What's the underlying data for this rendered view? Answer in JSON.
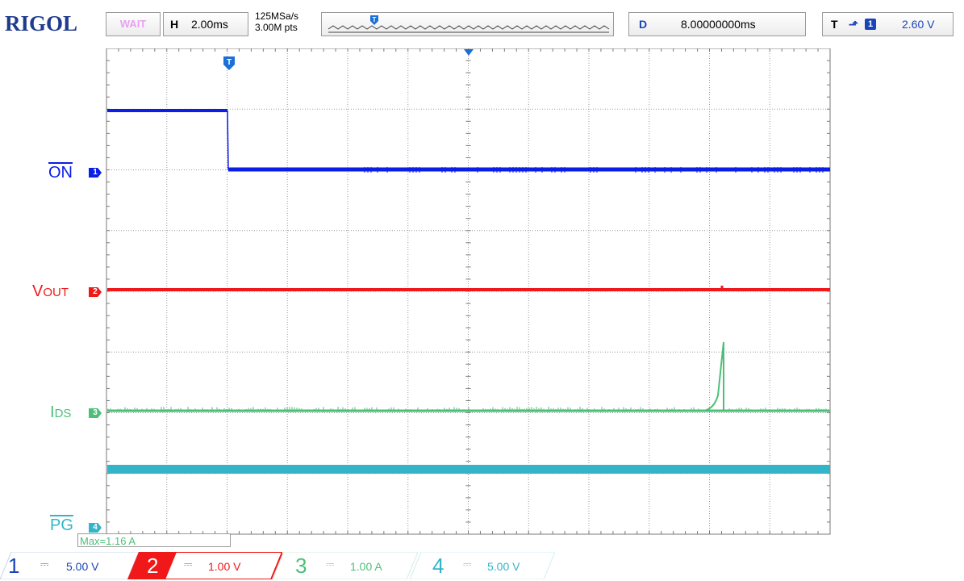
{
  "header": {
    "brand": "RIGOL",
    "run_status": "WAIT",
    "horizontal": {
      "letter": "H",
      "timebase": "2.00ms"
    },
    "sampling": {
      "rate": "125MSa/s",
      "memory": "3.00M pts"
    },
    "delay": {
      "letter": "D",
      "value": "8.00000000ms"
    },
    "trigger": {
      "letter": "T",
      "source": "1",
      "level": "2.60 V"
    }
  },
  "traces": [
    {
      "label": "ON",
      "marker": "1",
      "color": "#0b1ee6"
    },
    {
      "label": "VOUT",
      "label_first": "V",
      "label_rest": "OUT",
      "marker": "2",
      "color": "#f01818"
    },
    {
      "label": "IDS",
      "label_first": "I",
      "label_rest": "DS",
      "marker": "3",
      "color": "#4dbf78"
    },
    {
      "label": "PG",
      "marker": "4",
      "color": "#34b4c8"
    }
  ],
  "measurement": {
    "text": "Max=1.16 A"
  },
  "channels": [
    {
      "num": "1",
      "scale": "5.00 V",
      "active": false,
      "color": "#1a45b8",
      "bg": "#ffffff"
    },
    {
      "num": "2",
      "scale": "1.00 V",
      "active": true,
      "color": "#f01818",
      "bg": "#f01818"
    },
    {
      "num": "3",
      "scale": "1.00 A",
      "active": false,
      "color": "#4dbf78",
      "bg": "#ffffff"
    },
    {
      "num": "4",
      "scale": "5.00 V",
      "active": false,
      "color": "#34b4c8",
      "bg": "#ffffff"
    }
  ],
  "icons": {
    "trigger_marker": "trigger-position-icon",
    "trigger_edge": "rising-edge-icon",
    "coupling": "dc-coupling-icon"
  }
}
